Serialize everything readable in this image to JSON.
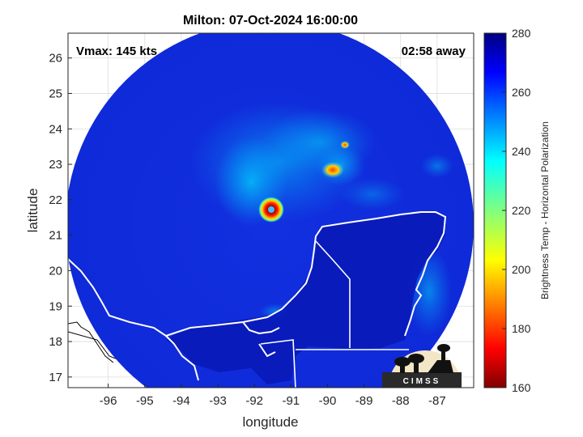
{
  "chart_data": {
    "type": "heatmap",
    "title": "Milton: 07-Oct-2024 16:00:00",
    "xlabel": "longitude",
    "ylabel": "latitude",
    "xlim": [
      -97.1,
      -86.0
    ],
    "ylim": [
      16.7,
      26.7
    ],
    "xticks": [
      -96,
      -95,
      -94,
      -93,
      -92,
      -91,
      -90,
      -89,
      -88,
      -87
    ],
    "yticks": [
      17,
      18,
      19,
      20,
      21,
      22,
      23,
      24,
      25,
      26
    ],
    "grid": true,
    "annotations": {
      "left": "Vmax: 145 kts",
      "right": "02:58 away"
    },
    "colorbar": {
      "label": "Brightness Temp - Horizontal Polarization",
      "range": [
        160,
        280
      ],
      "ticks": [
        160,
        180,
        200,
        220,
        240,
        260,
        280
      ],
      "colormap": "jet"
    },
    "storm_center": {
      "lon": -91.6,
      "lat": 21.75
    },
    "features": [
      {
        "lon": -91.6,
        "lat": 21.75,
        "value": 170,
        "description": "eye"
      },
      {
        "lon": -90.0,
        "lat": 22.85,
        "value": 205
      },
      {
        "lon": -89.65,
        "lat": 23.55,
        "value": 185
      }
    ]
  },
  "logo": {
    "text": "CIMSS"
  }
}
